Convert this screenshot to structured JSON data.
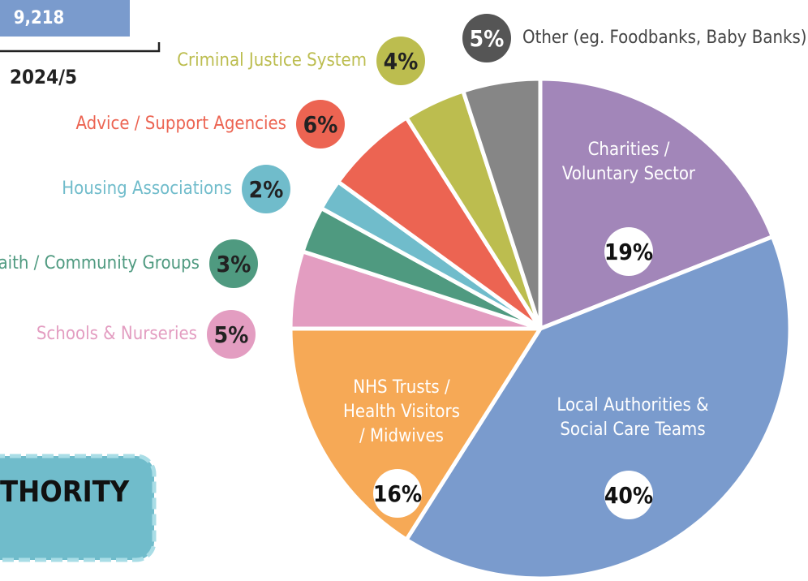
{
  "header": {
    "count": "9,218",
    "period": "2024/5",
    "box_text": "THORITY"
  },
  "chart_data": {
    "type": "pie",
    "categories": [
      "Charities / Voluntary Sector",
      "Local Authorities & Social Care Teams",
      "NHS Trusts / Health Visitors / Midwives",
      "Schools & Nurseries",
      "Faith / Community Groups",
      "Housing Associations",
      "Advice / Support Agencies",
      "Criminal Justice System",
      "Other (eg. Foodbanks, Baby Banks)"
    ],
    "values": [
      19,
      40,
      16,
      5,
      3,
      2,
      6,
      4,
      5
    ],
    "value_labels": [
      "19%",
      "40%",
      "16%",
      "5%",
      "3%",
      "2%",
      "6%",
      "4%",
      "5%"
    ],
    "colors": [
      "#a286b9",
      "#7a9bcd",
      "#f6a956",
      "#e39dc1",
      "#4f9a80",
      "#70bccb",
      "#ec6452",
      "#bcbd4f",
      "#868686"
    ]
  }
}
